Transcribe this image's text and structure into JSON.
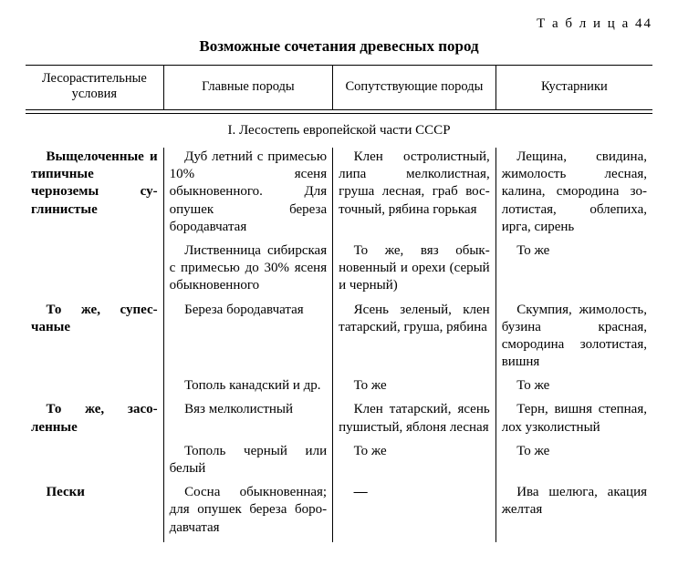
{
  "tableLabel": "Т а б л и ц а  44",
  "title": "Возможные сочетания древесных пород",
  "headers": {
    "c1": "Лесораститель­ные условия",
    "c2": "Главные породы",
    "c3": "Сопутствующие породы",
    "c4": "Кустарники"
  },
  "section": "I. Лесостепь европейской части СССР",
  "rows": [
    {
      "c1": "Выщелочен­ные и типичные черноземы су­глинистые",
      "c2": "Дуб летний с примесью 10% ясеня обыкновенного. Для опушек береза бородавчатая",
      "c3": "Клен остролист­ный, липа мелко­листная, груша лесная, граб вос­точный, рябина горькая",
      "c4": "Лещина, свидина, жимолость лесная, калина, смородина зо­лотистая, облепиха, ирга, сирень"
    },
    {
      "c1": "",
      "c2": "Лиственница си­бирская с при­месью до 30% ясеня обыкновенного",
      "c3": "То же, вяз обык­новенный и орехи (серый и черный)",
      "c4": "То же"
    },
    {
      "c1": "То же, супес­чаные",
      "c2": "Береза бородав­чатая",
      "c3": "Ясень зеленый, клен татарский, груша, рябина",
      "c4": "Скумпия, жимо­лость, бузина крас­ная, смородина зо­лотистая, вишня"
    },
    {
      "c1": "",
      "c2": "Тополь канад­ский и др.",
      "c3": "То же",
      "c4": "То же"
    },
    {
      "c1": "То же, засо­ленные",
      "c2": "Вяз мелколист­ный",
      "c3": "Клен татарский, ясень пушистый, яблоня лесная",
      "c4": "Терн, вишня степ­ная, лох узколистный"
    },
    {
      "c1": "",
      "c2": "Тополь черный или белый",
      "c3": "То же",
      "c4": "То же"
    },
    {
      "c1": "Пески",
      "c2": "Сосна обыкно­венная; для опу­шек береза боро­давчатая",
      "c3": "—",
      "c4": "Ива шелюга, ака­ция желтая"
    }
  ]
}
